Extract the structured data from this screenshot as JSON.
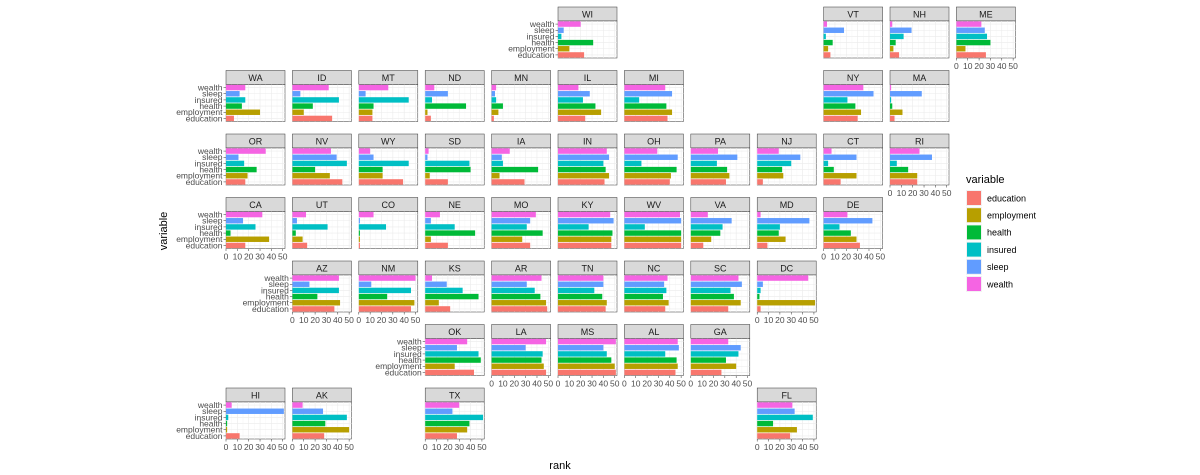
{
  "chart_data": {
    "type": "bar",
    "orientation": "horizontal",
    "layout": "state-grid-facets",
    "xlabel": "rank",
    "ylabel": "variable",
    "xlim": [
      0,
      52
    ],
    "xticks": [
      0,
      10,
      20,
      30,
      40,
      50
    ],
    "xtick_labels": [
      "0",
      "10",
      "20",
      "30",
      "40",
      "50"
    ],
    "categories": [
      "wealth",
      "sleep",
      "insured",
      "health",
      "employment",
      "education"
    ],
    "legend": {
      "title": "variable",
      "position": "right",
      "items": [
        {
          "label": "education",
          "color": "#F8766D"
        },
        {
          "label": "employment",
          "color": "#B79F00"
        },
        {
          "label": "health",
          "color": "#00BA38"
        },
        {
          "label": "insured",
          "color": "#00BFC4"
        },
        {
          "label": "sleep",
          "color": "#619CFF"
        },
        {
          "label": "wealth",
          "color": "#F564E3"
        }
      ]
    },
    "grid": true,
    "panels": [
      {
        "state": "WI",
        "row": 0,
        "col": 5,
        "values": {
          "wealth": 20,
          "sleep": 5,
          "insured": 3,
          "health": 31,
          "employment": 10,
          "education": 23
        }
      },
      {
        "state": "VT",
        "row": 0,
        "col": 9,
        "values": {
          "wealth": 3,
          "sleep": 18,
          "insured": 2,
          "health": 8,
          "employment": 4,
          "education": 6
        }
      },
      {
        "state": "NH",
        "row": 0,
        "col": 10,
        "values": {
          "wealth": 2,
          "sleep": 19,
          "insured": 12,
          "health": 5,
          "employment": 3,
          "education": 8
        }
      },
      {
        "state": "ME",
        "row": 0,
        "col": 11,
        "values": {
          "wealth": 22,
          "sleep": 25,
          "insured": 27,
          "health": 30,
          "employment": 8,
          "education": 26
        }
      },
      {
        "state": "WA",
        "row": 1,
        "col": 0,
        "values": {
          "wealth": 17,
          "sleep": 12,
          "insured": 17,
          "health": 14,
          "employment": 30,
          "education": 7
        }
      },
      {
        "state": "ID",
        "row": 1,
        "col": 1,
        "values": {
          "wealth": 32,
          "sleep": 7,
          "insured": 41,
          "health": 18,
          "employment": 10,
          "education": 35
        }
      },
      {
        "state": "MT",
        "row": 1,
        "col": 2,
        "values": {
          "wealth": 26,
          "sleep": 6,
          "insured": 44,
          "health": 13,
          "employment": 12,
          "education": 12
        }
      },
      {
        "state": "ND",
        "row": 1,
        "col": 3,
        "values": {
          "wealth": 8,
          "sleep": 20,
          "insured": 6,
          "health": 36,
          "employment": 2,
          "education": 5
        }
      },
      {
        "state": "MN",
        "row": 1,
        "col": 4,
        "values": {
          "wealth": 4,
          "sleep": 3,
          "insured": 4,
          "health": 10,
          "employment": 6,
          "education": 2
        }
      },
      {
        "state": "IL",
        "row": 1,
        "col": 5,
        "values": {
          "wealth": 18,
          "sleep": 28,
          "insured": 22,
          "health": 33,
          "employment": 38,
          "education": 24
        }
      },
      {
        "state": "MI",
        "row": 1,
        "col": 6,
        "values": {
          "wealth": 36,
          "sleep": 42,
          "insured": 13,
          "health": 37,
          "employment": 42,
          "education": 38
        }
      },
      {
        "state": "NY",
        "row": 1,
        "col": 9,
        "values": {
          "wealth": 35,
          "sleep": 44,
          "insured": 21,
          "health": 28,
          "employment": 33,
          "education": 30
        }
      },
      {
        "state": "MA",
        "row": 1,
        "col": 10,
        "values": {
          "wealth": 1,
          "sleep": 28,
          "insured": 1,
          "health": 2,
          "employment": 11,
          "education": 4
        }
      },
      {
        "state": "OR",
        "row": 2,
        "col": 0,
        "values": {
          "wealth": 35,
          "sleep": 11,
          "insured": 16,
          "health": 27,
          "employment": 19,
          "education": 17
        }
      },
      {
        "state": "NV",
        "row": 2,
        "col": 1,
        "values": {
          "wealth": 34,
          "sleep": 39,
          "insured": 48,
          "health": 20,
          "employment": 33,
          "education": 44
        }
      },
      {
        "state": "WY",
        "row": 2,
        "col": 2,
        "values": {
          "wealth": 10,
          "sleep": 13,
          "insured": 44,
          "health": 21,
          "employment": 21,
          "education": 39
        }
      },
      {
        "state": "SD",
        "row": 2,
        "col": 3,
        "values": {
          "wealth": 3,
          "sleep": 2,
          "insured": 39,
          "health": 40,
          "employment": 4,
          "education": 20
        }
      },
      {
        "state": "IA",
        "row": 2,
        "col": 4,
        "values": {
          "wealth": 16,
          "sleep": 9,
          "insured": 10,
          "health": 41,
          "employment": 7,
          "education": 29
        }
      },
      {
        "state": "IN",
        "row": 2,
        "col": 5,
        "values": {
          "wealth": 43,
          "sleep": 45,
          "insured": 40,
          "health": 42,
          "employment": 45,
          "education": 41
        }
      },
      {
        "state": "OH",
        "row": 2,
        "col": 6,
        "values": {
          "wealth": 29,
          "sleep": 47,
          "insured": 15,
          "health": 46,
          "employment": 41,
          "education": 40
        }
      },
      {
        "state": "PA",
        "row": 2,
        "col": 7,
        "values": {
          "wealth": 24,
          "sleep": 41,
          "insured": 23,
          "health": 32,
          "employment": 34,
          "education": 31
        }
      },
      {
        "state": "NJ",
        "row": 2,
        "col": 8,
        "values": {
          "wealth": 19,
          "sleep": 38,
          "insured": 30,
          "health": 22,
          "employment": 23,
          "education": 5
        }
      },
      {
        "state": "CT",
        "row": 2,
        "col": 9,
        "values": {
          "wealth": 7,
          "sleep": 29,
          "insured": 4,
          "health": 9,
          "employment": 29,
          "education": 15
        }
      },
      {
        "state": "RI",
        "row": 2,
        "col": 10,
        "values": {
          "wealth": 26,
          "sleep": 37,
          "insured": 6,
          "health": 16,
          "employment": 24,
          "education": 24
        }
      },
      {
        "state": "CA",
        "row": 3,
        "col": 0,
        "values": {
          "wealth": 32,
          "sleep": 15,
          "insured": 26,
          "health": 4,
          "employment": 38,
          "education": 17
        }
      },
      {
        "state": "UT",
        "row": 3,
        "col": 1,
        "values": {
          "wealth": 12,
          "sleep": 4,
          "insured": 31,
          "health": 3,
          "employment": 9,
          "education": 13
        }
      },
      {
        "state": "CO",
        "row": 3,
        "col": 2,
        "values": {
          "wealth": 13,
          "sleep": 1,
          "insured": 24,
          "health": 1,
          "employment": 1,
          "education": 1
        }
      },
      {
        "state": "NE",
        "row": 3,
        "col": 3,
        "values": {
          "wealth": 13,
          "sleep": 5,
          "insured": 26,
          "health": 44,
          "employment": 5,
          "education": 20
        }
      },
      {
        "state": "MO",
        "row": 3,
        "col": 4,
        "values": {
          "wealth": 39,
          "sleep": 34,
          "insured": 31,
          "health": 45,
          "employment": 27,
          "education": 34
        }
      },
      {
        "state": "KY",
        "row": 3,
        "col": 5,
        "values": {
          "wealth": 46,
          "sleep": 49,
          "insured": 27,
          "health": 48,
          "employment": 47,
          "education": 47
        }
      },
      {
        "state": "WV",
        "row": 3,
        "col": 6,
        "values": {
          "wealth": 49,
          "sleep": 50,
          "insured": 18,
          "health": 50,
          "employment": 50,
          "education": 50
        }
      },
      {
        "state": "VA",
        "row": 3,
        "col": 7,
        "values": {
          "wealth": 15,
          "sleep": 36,
          "insured": 28,
          "health": 26,
          "employment": 18,
          "education": 11
        }
      },
      {
        "state": "MD",
        "row": 3,
        "col": 8,
        "values": {
          "wealth": 3,
          "sleep": 46,
          "insured": 20,
          "health": 19,
          "employment": 25,
          "education": 9
        }
      },
      {
        "state": "DE",
        "row": 3,
        "col": 9,
        "values": {
          "wealth": 21,
          "sleep": 43,
          "insured": 14,
          "health": 24,
          "employment": 29,
          "education": 32
        }
      },
      {
        "state": "AZ",
        "row": 4,
        "col": 1,
        "values": {
          "wealth": 41,
          "sleep": 15,
          "insured": 41,
          "health": 22,
          "employment": 42,
          "education": 37
        }
      },
      {
        "state": "NM",
        "row": 4,
        "col": 2,
        "values": {
          "wealth": 50,
          "sleep": 11,
          "insured": 46,
          "health": 25,
          "employment": 49,
          "education": 46
        }
      },
      {
        "state": "KS",
        "row": 4,
        "col": 3,
        "values": {
          "wealth": 6,
          "sleep": 19,
          "insured": 33,
          "health": 47,
          "employment": 12,
          "education": 22
        }
      },
      {
        "state": "AR",
        "row": 4,
        "col": 4,
        "values": {
          "wealth": 44,
          "sleep": 31,
          "insured": 38,
          "health": 43,
          "employment": 48,
          "education": 49
        }
      },
      {
        "state": "TN",
        "row": 4,
        "col": 5,
        "values": {
          "wealth": 40,
          "sleep": 40,
          "insured": 32,
          "health": 39,
          "employment": 43,
          "education": 42
        }
      },
      {
        "state": "NC",
        "row": 4,
        "col": 6,
        "values": {
          "wealth": 38,
          "sleep": 35,
          "insured": 37,
          "health": 34,
          "employment": 39,
          "education": 36
        }
      },
      {
        "state": "SC",
        "row": 4,
        "col": 7,
        "values": {
          "wealth": 42,
          "sleep": 45,
          "insured": 35,
          "health": 38,
          "employment": 44,
          "education": 33
        }
      },
      {
        "state": "DC",
        "row": 4,
        "col": 8,
        "values": {
          "wealth": 45,
          "sleep": 5,
          "insured": 3,
          "health": 2,
          "employment": 51,
          "education": 3
        }
      },
      {
        "state": "OK",
        "row": 5,
        "col": 3,
        "values": {
          "wealth": 37,
          "sleep": 28,
          "insured": 47,
          "health": 49,
          "employment": 26,
          "education": 43
        }
      },
      {
        "state": "LA",
        "row": 5,
        "col": 4,
        "values": {
          "wealth": 48,
          "sleep": 30,
          "insured": 45,
          "health": 44,
          "employment": 46,
          "education": 48
        }
      },
      {
        "state": "MS",
        "row": 5,
        "col": 5,
        "values": {
          "wealth": 51,
          "sleep": 40,
          "insured": 43,
          "health": 47,
          "employment": 50,
          "education": 51
        }
      },
      {
        "state": "AL",
        "row": 5,
        "col": 6,
        "values": {
          "wealth": 47,
          "sleep": 48,
          "insured": 36,
          "health": 46,
          "employment": 47,
          "education": 45
        }
      },
      {
        "state": "GA",
        "row": 5,
        "col": 7,
        "values": {
          "wealth": 33,
          "sleep": 44,
          "insured": 42,
          "health": 31,
          "employment": 40,
          "education": 27
        }
      },
      {
        "state": "HI",
        "row": 6,
        "col": 0,
        "values": {
          "wealth": 5,
          "sleep": 51,
          "insured": 2,
          "health": 1,
          "employment": 1,
          "education": 12
        }
      },
      {
        "state": "AK",
        "row": 6,
        "col": 1,
        "values": {
          "wealth": 9,
          "sleep": 27,
          "insured": 48,
          "health": 29,
          "employment": 50,
          "education": 28
        }
      },
      {
        "state": "TX",
        "row": 6,
        "col": 3,
        "values": {
          "wealth": 30,
          "sleep": 24,
          "insured": 51,
          "health": 39,
          "employment": 37,
          "education": 28
        }
      },
      {
        "state": "FL",
        "row": 6,
        "col": 8,
        "values": {
          "wealth": 31,
          "sleep": 33,
          "insured": 49,
          "health": 14,
          "employment": 35,
          "education": 29
        }
      }
    ]
  }
}
